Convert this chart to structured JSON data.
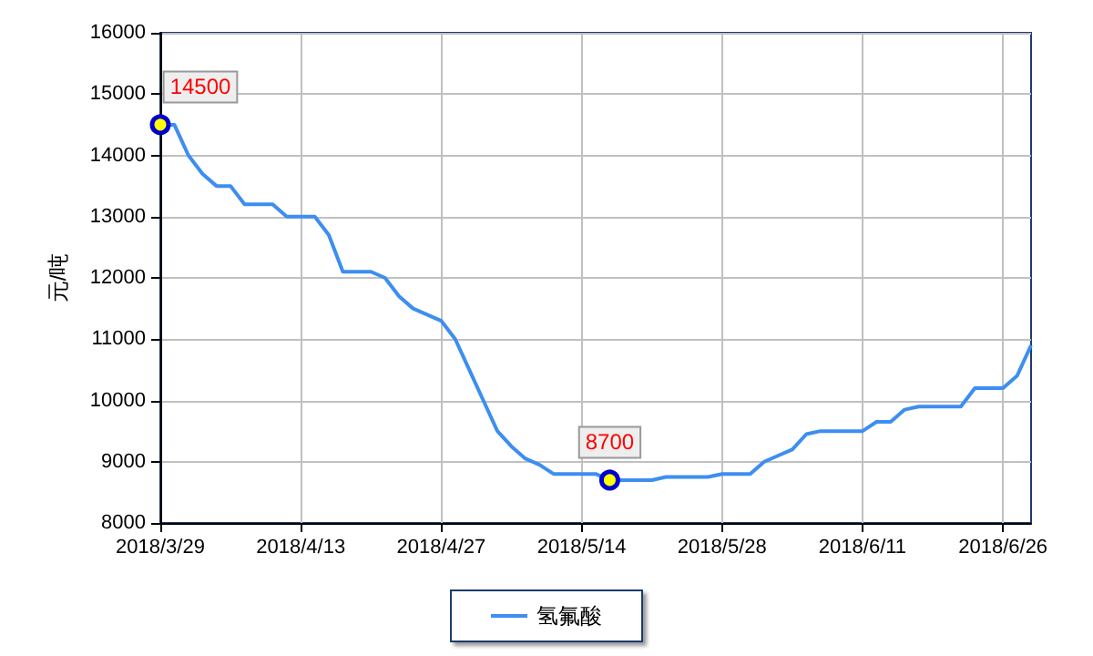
{
  "chart_data": {
    "type": "line",
    "ylabel": "元/吨",
    "categories": [
      "2018/3/29",
      null,
      null,
      null,
      null,
      null,
      null,
      null,
      null,
      null,
      "2018/4/13",
      null,
      null,
      null,
      null,
      null,
      null,
      null,
      null,
      null,
      "2018/4/27",
      null,
      null,
      null,
      null,
      null,
      null,
      null,
      null,
      null,
      "2018/5/14",
      null,
      null,
      null,
      null,
      null,
      null,
      null,
      null,
      null,
      "2018/5/28",
      null,
      null,
      null,
      null,
      null,
      null,
      null,
      null,
      null,
      "2018/6/11",
      null,
      null,
      null,
      null,
      null,
      null,
      null,
      null,
      null,
      "2018/6/26",
      null,
      null
    ],
    "series": [
      {
        "name": "氢氟酸",
        "color": "#3d8ef0",
        "values": [
          14500,
          14500,
          14000,
          13700,
          13500,
          13500,
          13200,
          13200,
          13200,
          13000,
          13000,
          13000,
          12700,
          12100,
          12100,
          12100,
          12000,
          11700,
          11500,
          11400,
          11300,
          11000,
          10500,
          10000,
          9500,
          9250,
          9050,
          8950,
          8800,
          8800,
          8800,
          8800,
          8700,
          8700,
          8700,
          8700,
          8750,
          8750,
          8750,
          8750,
          8800,
          8800,
          8800,
          9000,
          9100,
          9200,
          9450,
          9500,
          9500,
          9500,
          9500,
          9650,
          9650,
          9850,
          9900,
          9900,
          9900,
          9900,
          10200,
          10200,
          10200,
          10400,
          10900
        ],
        "value_labels": [
          "14500",
          null,
          null,
          null,
          null,
          null,
          null,
          null,
          null,
          null,
          null,
          null,
          null,
          null,
          null,
          null,
          null,
          null,
          null,
          null,
          null,
          null,
          null,
          null,
          null,
          null,
          null,
          null,
          null,
          null,
          null,
          null,
          "8700",
          null,
          null,
          null,
          null,
          null,
          null,
          null,
          null,
          null,
          null,
          null,
          null,
          null,
          null,
          null,
          null,
          null,
          null,
          null,
          null,
          null,
          null,
          null,
          null,
          null,
          null,
          null,
          null,
          null,
          null
        ]
      }
    ],
    "ylim": [
      8000,
      16000
    ],
    "yticks": [
      8000,
      9000,
      10000,
      11000,
      12000,
      13000,
      14000,
      15000,
      16000
    ],
    "grid": true,
    "legend": "bottom"
  }
}
